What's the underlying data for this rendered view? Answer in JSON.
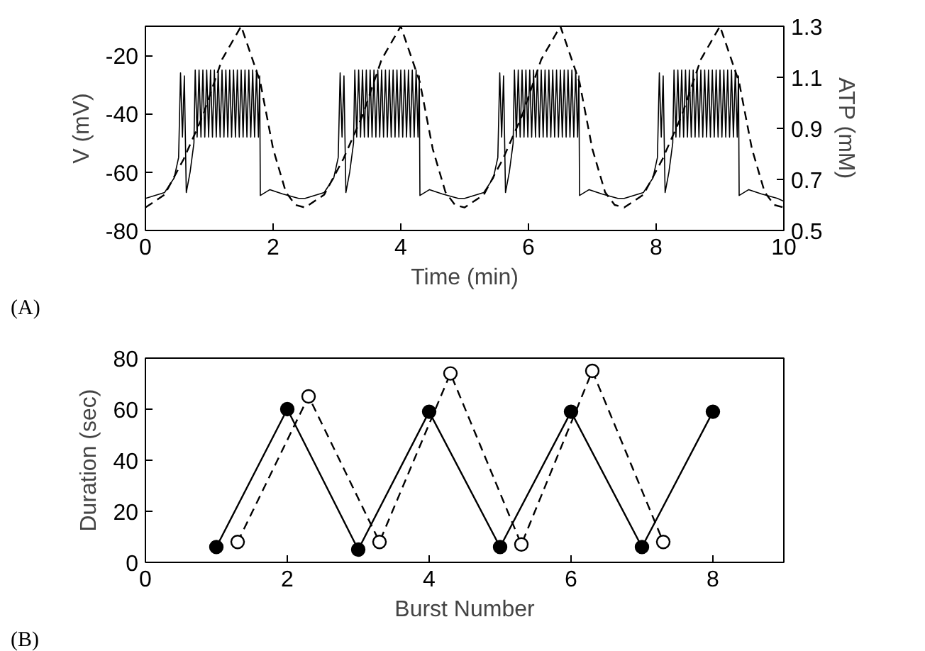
{
  "chart_data": [
    {
      "type": "line",
      "xlabel": "Time (min)",
      "ylabel": "V (mV)",
      "y2label": "ATP (mM)",
      "annotations": [
        "(A)"
      ],
      "xlim": [
        0,
        10
      ],
      "xticks": [
        0,
        2,
        4,
        6,
        8,
        10
      ],
      "ylim": [
        -80,
        -10
      ],
      "yticks": [
        -80,
        -60,
        -40,
        -20
      ],
      "y2lim": [
        0.5,
        1.3
      ],
      "y2ticks": [
        0.5,
        0.7,
        0.9,
        1.1,
        1.3
      ],
      "grid": false,
      "series": [
        {
          "color": "#000000",
          "line_style": "solid",
          "x": [
            0,
            0.3,
            0.45,
            0.52,
            0.55,
            0.58,
            0.61,
            0.64,
            0.7,
            0.76,
            0.78,
            0.81,
            0.84,
            0.87,
            0.9,
            0.93,
            0.96,
            0.99,
            1.02,
            1.05,
            1.08,
            1.11,
            1.14,
            1.17,
            1.2,
            1.23,
            1.26,
            1.29,
            1.32,
            1.35,
            1.38,
            1.41,
            1.44,
            1.47,
            1.5,
            1.53,
            1.56,
            1.59,
            1.62,
            1.65,
            1.68,
            1.71,
            1.74,
            1.77,
            1.79,
            1.8,
            1.95,
            2.15,
            2.4,
            2.5,
            2.8,
            2.95,
            3.02,
            3.05,
            3.08,
            3.11,
            3.14,
            3.2,
            3.26,
            3.28,
            3.31,
            3.34,
            3.37,
            3.4,
            3.43,
            3.46,
            3.49,
            3.52,
            3.55,
            3.58,
            3.61,
            3.64,
            3.67,
            3.7,
            3.73,
            3.76,
            3.79,
            3.82,
            3.85,
            3.88,
            3.91,
            3.94,
            3.97,
            4.0,
            4.03,
            4.06,
            4.09,
            4.12,
            4.15,
            4.18,
            4.21,
            4.24,
            4.27,
            4.29,
            4.3,
            4.45,
            4.65,
            4.9,
            5.0,
            5.3,
            5.45,
            5.52,
            5.55,
            5.58,
            5.61,
            5.64,
            5.7,
            5.76,
            5.78,
            5.81,
            5.84,
            5.87,
            5.9,
            5.93,
            5.96,
            5.99,
            6.02,
            6.05,
            6.08,
            6.11,
            6.14,
            6.17,
            6.2,
            6.23,
            6.26,
            6.29,
            6.32,
            6.35,
            6.38,
            6.41,
            6.44,
            6.47,
            6.5,
            6.53,
            6.56,
            6.59,
            6.62,
            6.65,
            6.68,
            6.71,
            6.74,
            6.77,
            6.79,
            6.8,
            6.95,
            7.15,
            7.4,
            7.5,
            7.8,
            7.95,
            8.02,
            8.05,
            8.08,
            8.11,
            8.14,
            8.2,
            8.26,
            8.28,
            8.31,
            8.34,
            8.37,
            8.4,
            8.43,
            8.46,
            8.49,
            8.52,
            8.55,
            8.58,
            8.61,
            8.64,
            8.67,
            8.7,
            8.73,
            8.76,
            8.79,
            8.82,
            8.85,
            8.88,
            8.91,
            8.94,
            8.97,
            9.0,
            9.03,
            9.06,
            9.09,
            9.12,
            9.15,
            9.18,
            9.21,
            9.24,
            9.27,
            9.29,
            9.3,
            9.45,
            9.65,
            9.9,
            10
          ],
          "values": [
            -69,
            -67,
            -62,
            -55,
            -26,
            -48,
            -27,
            -67,
            -60,
            -50,
            -25,
            -48,
            -25,
            -48,
            -25,
            -48,
            -25,
            -48,
            -25,
            -48,
            -25,
            -48,
            -25,
            -48,
            -25,
            -48,
            -25,
            -48,
            -25,
            -48,
            -25,
            -48,
            -25,
            -48,
            -25,
            -48,
            -25,
            -48,
            -25,
            -48,
            -25,
            -48,
            -25,
            -48,
            -27,
            -68,
            -66,
            -67.5,
            -69,
            -69,
            -67,
            -62,
            -55,
            -26,
            -48,
            -27,
            -67,
            -60,
            -50,
            -25,
            -48,
            -25,
            -48,
            -25,
            -48,
            -25,
            -48,
            -25,
            -48,
            -25,
            -48,
            -25,
            -48,
            -25,
            -48,
            -25,
            -48,
            -25,
            -48,
            -25,
            -48,
            -25,
            -48,
            -25,
            -48,
            -25,
            -48,
            -25,
            -48,
            -25,
            -48,
            -25,
            -48,
            -27,
            -68,
            -66,
            -67.5,
            -69,
            -69,
            -67,
            -62,
            -55,
            -26,
            -48,
            -27,
            -67,
            -60,
            -50,
            -25,
            -48,
            -25,
            -48,
            -25,
            -48,
            -25,
            -48,
            -25,
            -48,
            -25,
            -48,
            -25,
            -48,
            -25,
            -48,
            -25,
            -48,
            -25,
            -48,
            -25,
            -48,
            -25,
            -48,
            -25,
            -48,
            -25,
            -48,
            -25,
            -48,
            -25,
            -48,
            -25,
            -48,
            -27,
            -68,
            -66,
            -67.5,
            -69,
            -69,
            -67,
            -62,
            -55,
            -26,
            -48,
            -27,
            -67,
            -60,
            -50,
            -25,
            -48,
            -25,
            -48,
            -25,
            -48,
            -25,
            -48,
            -25,
            -48,
            -25,
            -48,
            -25,
            -48,
            -25,
            -48,
            -25,
            -48,
            -25,
            -48,
            -25,
            -48,
            -25,
            -48,
            -25,
            -48,
            -25,
            -48,
            -25,
            -48,
            -25,
            -48,
            -25,
            -48,
            -27,
            -68,
            -66,
            -67.5,
            -69,
            -70
          ]
        },
        {
          "color": "#000000",
          "line_style": "dashed",
          "axis": "y2",
          "x": [
            0,
            0.3,
            0.6,
            0.9,
            1.2,
            1.5,
            1.8,
            2.0,
            2.2,
            2.35,
            2.5,
            2.8,
            3.1,
            3.4,
            3.7,
            4.0,
            4.3,
            4.5,
            4.7,
            4.85,
            5.0,
            5.3,
            5.6,
            5.9,
            6.2,
            6.5,
            6.8,
            7.0,
            7.2,
            7.35,
            7.5,
            7.8,
            8.1,
            8.4,
            8.7,
            9.0,
            9.3,
            9.5,
            9.7,
            9.85,
            10
          ],
          "values": [
            0.59,
            0.64,
            0.78,
            0.95,
            1.17,
            1.3,
            1.08,
            0.82,
            0.65,
            0.6,
            0.59,
            0.64,
            0.78,
            0.95,
            1.17,
            1.3,
            1.08,
            0.82,
            0.65,
            0.6,
            0.59,
            0.64,
            0.78,
            0.95,
            1.17,
            1.3,
            1.08,
            0.82,
            0.65,
            0.6,
            0.59,
            0.64,
            0.78,
            0.95,
            1.17,
            1.3,
            1.08,
            0.82,
            0.65,
            0.6,
            0.59
          ]
        }
      ]
    },
    {
      "type": "line",
      "xlabel": "Burst Number",
      "ylabel": "Duration (sec)",
      "annotations": [
        "(B)"
      ],
      "xlim": [
        0,
        9
      ],
      "xticks": [
        0,
        2,
        4,
        6,
        8
      ],
      "ylim": [
        0,
        80
      ],
      "yticks": [
        0,
        20,
        40,
        60,
        80
      ],
      "grid": false,
      "marker": "circle",
      "series": [
        {
          "color": "#000000",
          "line_style": "solid",
          "x": [
            1,
            2,
            3,
            4,
            5,
            6,
            7,
            8
          ],
          "values": [
            6,
            60,
            5,
            59,
            6,
            59,
            6,
            59
          ]
        },
        {
          "color": "#000000",
          "line_style": "dashed",
          "x": [
            1.3,
            2.3,
            3.3,
            4.3,
            5.3,
            6.3,
            7.3
          ],
          "values": [
            8,
            65,
            8,
            74,
            7,
            75,
            8
          ]
        }
      ]
    }
  ]
}
